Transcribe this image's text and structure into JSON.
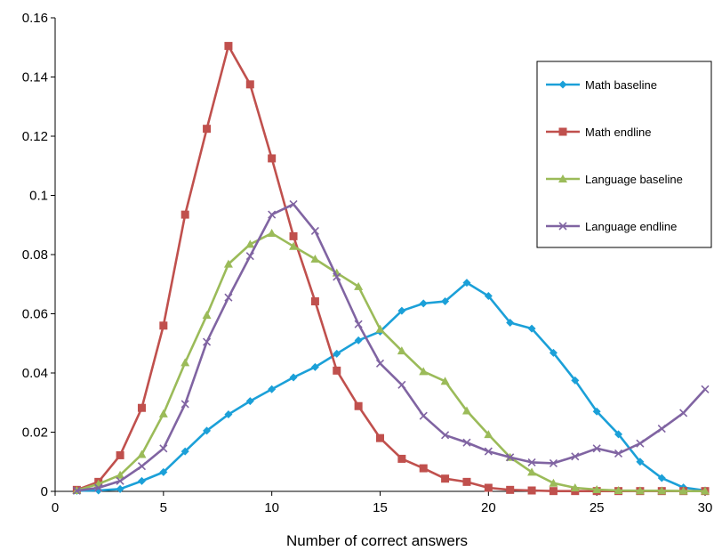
{
  "chart_data": {
    "type": "line",
    "title": "",
    "xlabel": "Number of correct answers",
    "ylabel": "",
    "xlim": [
      0,
      30
    ],
    "ylim": [
      0,
      0.16
    ],
    "x_ticks": [
      "0",
      "5",
      "10",
      "15",
      "20",
      "25",
      "30"
    ],
    "y_ticks": [
      "0",
      "0.02",
      "0.04",
      "0.06",
      "0.08",
      "0.1",
      "0.12",
      "0.14",
      "0.16"
    ],
    "grid": false,
    "legend_position": "right",
    "x": [
      1,
      2,
      3,
      4,
      5,
      6,
      7,
      8,
      9,
      10,
      11,
      12,
      13,
      14,
      15,
      16,
      17,
      18,
      19,
      20,
      21,
      22,
      23,
      24,
      25,
      26,
      27,
      28,
      29,
      30
    ],
    "series": [
      {
        "name": "Math baseline",
        "color": "#1ba0d8",
        "marker": "diamond",
        "values": [
          0.0002,
          0.0003,
          0.0008,
          0.0035,
          0.0065,
          0.0135,
          0.0205,
          0.026,
          0.0305,
          0.0345,
          0.0385,
          0.042,
          0.0465,
          0.051,
          0.054,
          0.061,
          0.0635,
          0.0642,
          0.0705,
          0.066,
          0.057,
          0.055,
          0.0468,
          0.0375,
          0.027,
          0.0193,
          0.01,
          0.0045,
          0.0013,
          0.0003
        ]
      },
      {
        "name": "Math endline",
        "color": "#c0504d",
        "marker": "square",
        "values": [
          0.0005,
          0.0032,
          0.0122,
          0.0282,
          0.056,
          0.0935,
          0.1225,
          0.1505,
          0.1375,
          0.1125,
          0.0862,
          0.0642,
          0.0408,
          0.0288,
          0.018,
          0.011,
          0.0078,
          0.0043,
          0.0032,
          0.0012,
          0.0005,
          0.0003,
          0.0001,
          0.0001,
          0.0001,
          0.0001,
          0.0001,
          0.0001,
          0.0001,
          0.0001
        ]
      },
      {
        "name": "Language baseline",
        "color": "#9bbb59",
        "marker": "triangle",
        "values": [
          0.0003,
          0.0025,
          0.0055,
          0.0125,
          0.0262,
          0.0435,
          0.0595,
          0.0768,
          0.0835,
          0.0872,
          0.0828,
          0.0785,
          0.0738,
          0.0692,
          0.0548,
          0.0475,
          0.0405,
          0.0372,
          0.0272,
          0.0192,
          0.0115,
          0.0065,
          0.0028,
          0.0012,
          0.0006,
          0.0003,
          0.0002,
          0.0002,
          0.0001,
          0.0001
        ]
      },
      {
        "name": "Language endline",
        "color": "#8064a2",
        "marker": "x",
        "values": [
          0.0002,
          0.0012,
          0.0035,
          0.0085,
          0.0145,
          0.0295,
          0.0505,
          0.0655,
          0.0795,
          0.0935,
          0.097,
          0.088,
          0.0725,
          0.0565,
          0.0432,
          0.036,
          0.0255,
          0.019,
          0.0165,
          0.0135,
          0.0115,
          0.0098,
          0.0095,
          0.0118,
          0.0145,
          0.0128,
          0.0162,
          0.0212,
          0.0265,
          0.0345
        ]
      }
    ]
  }
}
